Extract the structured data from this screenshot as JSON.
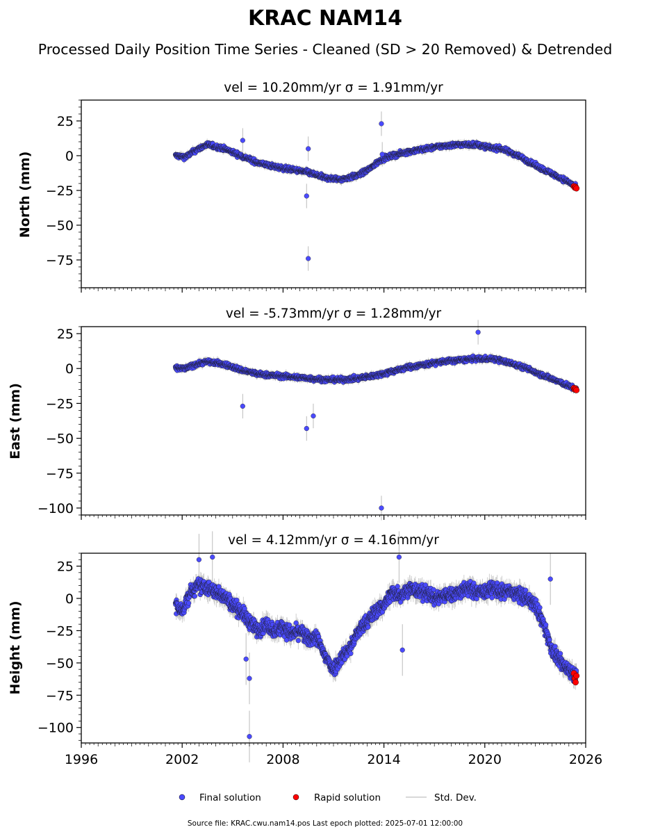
{
  "figure": {
    "title": "KRAC NAM14",
    "subtitle": "Processed Daily Position Time Series - Cleaned (SD > 20 Removed) & Detrended",
    "source_note": "Source file: KRAC.cwu.nam14.pos  Last epoch plotted: 2025-07-01 12:00:00"
  },
  "legend": {
    "final_label": "Final solution",
    "rapid_label": "Rapid solution",
    "std_label": "Std. Dev."
  },
  "colors": {
    "final": "#4a4aff",
    "rapid": "#ff0000",
    "std": "#bbbbbb",
    "outline": "#000000"
  },
  "chart_data": [
    {
      "type": "scatter",
      "panel": "north",
      "title": "vel = 10.20mm/yr   σ = 1.91mm/yr",
      "xlabel": "",
      "ylabel": "North (mm)",
      "xlim": [
        1996,
        2026
      ],
      "ylim": [
        -95,
        40
      ],
      "yticks": [
        25,
        0,
        -25,
        -50,
        -75
      ],
      "ytick_labels": [
        "25",
        "0",
        "−25",
        "−50",
        "−75"
      ],
      "final_trend": {
        "x": [
          2001.6,
          2002.2,
          2002.8,
          2003.5,
          2004.5,
          2005.5,
          2006.5,
          2007.5,
          2008.5,
          2009.5,
          2010.5,
          2011.5,
          2012.5,
          2013.2,
          2013.8,
          2014.5,
          2015.5,
          2016.5,
          2017.5,
          2018.5,
          2019.5,
          2020.2,
          2021.0,
          2022.0,
          2023.0,
          2024.0,
          2025.0,
          2025.45
        ],
        "y": [
          0.0,
          -1.0,
          4.0,
          8.0,
          5.0,
          0.0,
          -5.0,
          -8.0,
          -10.0,
          -12.0,
          -16.0,
          -17.0,
          -14.0,
          -9.0,
          -3.0,
          0.0,
          3.0,
          5.0,
          7.0,
          8.0,
          8.0,
          6.0,
          5.0,
          0.0,
          -7.0,
          -13.0,
          -19.0,
          -23.0
        ]
      },
      "final_outliers": {
        "x": [
          2005.6,
          2009.5,
          2009.4,
          2009.5,
          2013.85,
          2013.9
        ],
        "y": [
          11,
          5,
          -29,
          -74,
          23,
          1
        ]
      },
      "rapid": {
        "x": [
          2025.3,
          2025.35,
          2025.4,
          2025.45
        ],
        "y": [
          -22,
          -23,
          -22.5,
          -23.5
        ]
      }
    },
    {
      "type": "scatter",
      "panel": "east",
      "title": "vel = -5.73mm/yr   σ = 1.28mm/yr",
      "xlabel": "",
      "ylabel": "East (mm)",
      "xlim": [
        1996,
        2026
      ],
      "ylim": [
        -105,
        30
      ],
      "yticks": [
        25,
        0,
        -25,
        -50,
        -75,
        -100
      ],
      "ytick_labels": [
        "25",
        "0",
        "−25",
        "−50",
        "−75",
        "−100"
      ],
      "final_trend": {
        "x": [
          2001.6,
          2002.2,
          2002.8,
          2003.5,
          2004.5,
          2005.5,
          2006.5,
          2007.5,
          2008.5,
          2009.5,
          2010.5,
          2011.5,
          2012.5,
          2013.5,
          2014.5,
          2015.5,
          2016.5,
          2017.5,
          2018.5,
          2019.5,
          2020.5,
          2021.5,
          2022.5,
          2023.5,
          2024.5,
          2025.45
        ],
        "y": [
          0.0,
          0.0,
          3.0,
          5.0,
          3.0,
          -1.0,
          -4.0,
          -5.0,
          -6.0,
          -7.0,
          -8.0,
          -8.0,
          -7.0,
          -5.0,
          -2.0,
          1.0,
          3.0,
          5.0,
          6.0,
          7.0,
          7.0,
          4.0,
          0.0,
          -5.0,
          -10.0,
          -15.0
        ]
      },
      "final_outliers": {
        "x": [
          2005.6,
          2009.4,
          2009.8,
          2013.85,
          2019.6
        ],
        "y": [
          -27,
          -43,
          -34,
          -100,
          26
        ]
      },
      "rapid": {
        "x": [
          2025.3,
          2025.35,
          2025.4,
          2025.45
        ],
        "y": [
          -14,
          -15,
          -14.5,
          -15.5
        ]
      }
    },
    {
      "type": "scatter",
      "panel": "height",
      "title": "vel = 4.12mm/yr   σ = 4.16mm/yr",
      "xlabel": "",
      "ylabel": "Height (mm)",
      "xlim": [
        1996,
        2026
      ],
      "ylim": [
        -112,
        35
      ],
      "yticks": [
        25,
        0,
        -25,
        -50,
        -75,
        -100
      ],
      "ytick_labels": [
        "25",
        "0",
        "−25",
        "−50",
        "−75",
        "−100"
      ],
      "xticks": [
        1996,
        2002,
        2008,
        2014,
        2020,
        2026
      ],
      "xtick_labels": [
        "1996",
        "2002",
        "2008",
        "2014",
        "2020",
        "2026"
      ],
      "final_trend": {
        "x": [
          2001.6,
          2002.0,
          2002.5,
          2003.0,
          2003.5,
          2004.0,
          2004.5,
          2005.0,
          2005.5,
          2006.0,
          2006.5,
          2007.0,
          2007.5,
          2008.0,
          2008.5,
          2009.0,
          2009.5,
          2010.0,
          2010.5,
          2011.0,
          2011.5,
          2012.0,
          2012.5,
          2013.0,
          2013.5,
          2014.0,
          2014.5,
          2015.0,
          2015.5,
          2016.0,
          2016.5,
          2017.0,
          2017.5,
          2018.0,
          2018.5,
          2019.0,
          2019.5,
          2020.0,
          2020.5,
          2021.0,
          2021.5,
          2022.0,
          2022.5,
          2023.0,
          2023.5,
          2024.0,
          2024.5,
          2025.0,
          2025.45
        ],
        "y": [
          -5,
          -10,
          5,
          10,
          8,
          5,
          2,
          -5,
          -10,
          -18,
          -25,
          -20,
          -25,
          -22,
          -28,
          -25,
          -32,
          -30,
          -45,
          -55,
          -45,
          -38,
          -25,
          -18,
          -10,
          -5,
          5,
          3,
          8,
          5,
          5,
          0,
          2,
          3,
          5,
          8,
          5,
          5,
          8,
          5,
          5,
          3,
          0,
          -5,
          -20,
          -40,
          -50,
          -55,
          -60
        ]
      },
      "final_outliers": {
        "x": [
          2003.0,
          2003.8,
          2005.8,
          2006.0,
          2006.0,
          2014.9,
          2015.1,
          2023.9
        ],
        "y": [
          30,
          32,
          -47,
          -62,
          -107,
          32,
          -40,
          15
        ]
      },
      "rapid": {
        "x": [
          2025.3,
          2025.35,
          2025.4,
          2025.45
        ],
        "y": [
          -58,
          -62,
          -65,
          -60
        ]
      }
    }
  ]
}
